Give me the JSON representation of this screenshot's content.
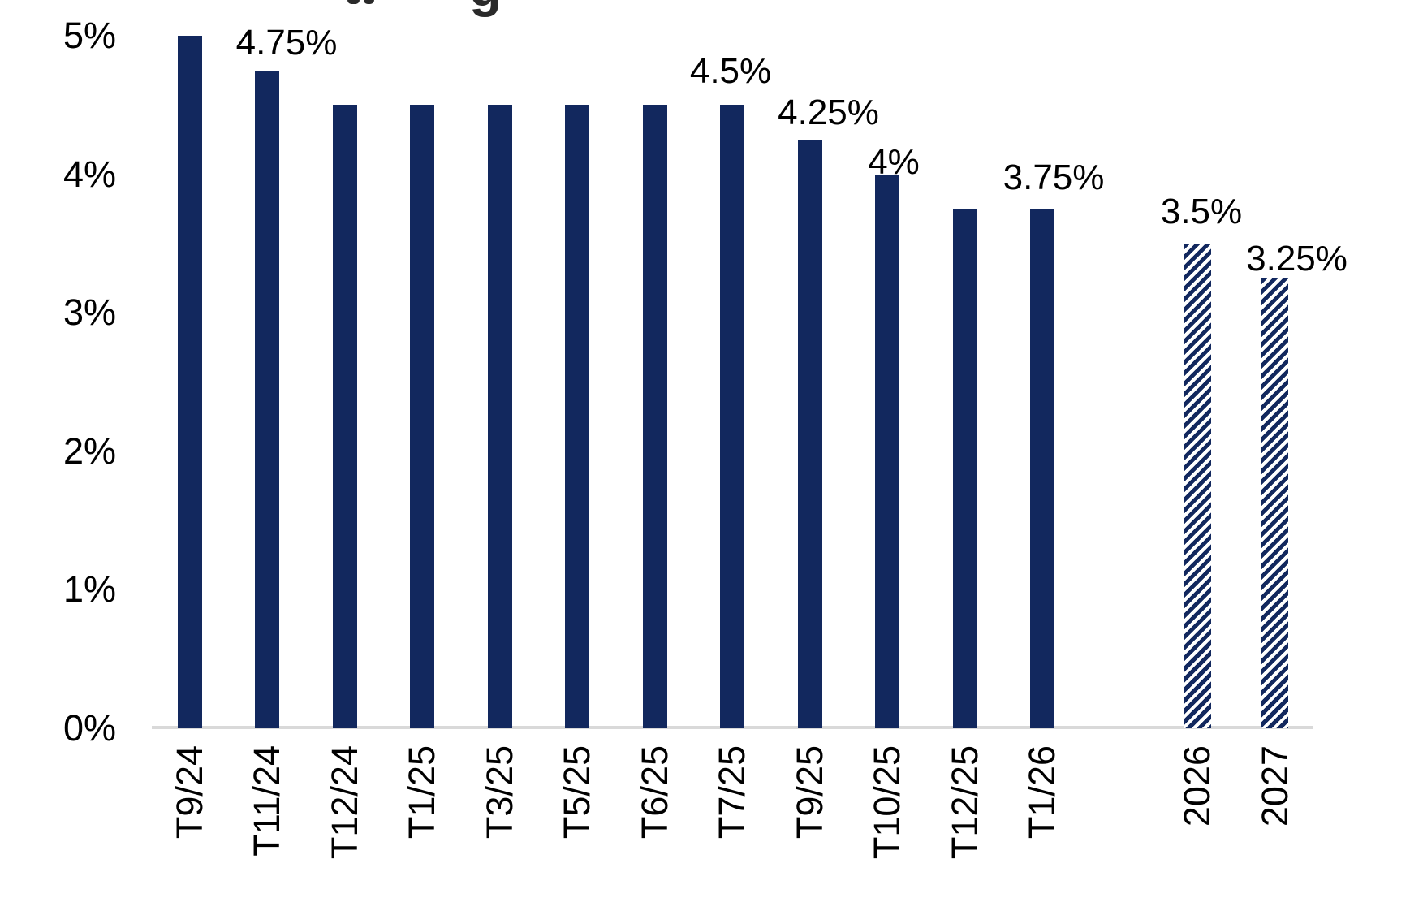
{
  "page": {
    "background": "#ffffff"
  },
  "cropped_title": {
    "visible_descender_letter": "g"
  },
  "chart_data": {
    "type": "bar",
    "title": "",
    "xlabel": "",
    "ylabel": "",
    "categories": [
      "T9/24",
      "T11/24",
      "T12/24",
      "T1/25",
      "T3/25",
      "T5/25",
      "T6/25",
      "T7/25",
      "T9/25",
      "T10/25",
      "T12/25",
      "T1/26",
      "2026",
      "2027"
    ],
    "values": [
      5,
      4.75,
      4.5,
      4.5,
      4.5,
      4.5,
      4.5,
      4.5,
      4.25,
      4,
      3.75,
      3.75,
      3.5,
      3.25
    ],
    "value_labels": [
      "",
      "4.75%",
      "",
      "",
      "",
      "",
      "",
      "4.5%",
      "4.25%",
      "4%",
      "",
      "3.75%",
      "3.5%",
      "3.25%"
    ],
    "hatched": [
      false,
      false,
      false,
      false,
      false,
      false,
      false,
      false,
      false,
      false,
      false,
      false,
      true,
      true
    ],
    "slot_index": [
      0,
      1,
      2,
      3,
      4,
      5,
      6,
      7,
      8,
      9,
      10,
      11,
      13,
      14
    ],
    "y_ticks": [
      "0%",
      "1%",
      "2%",
      "3%",
      "4%",
      "5%"
    ],
    "ylim": [
      0,
      5
    ],
    "grid": false,
    "legend": false,
    "colors": {
      "bar": "#12285e",
      "axis_line": "#d9d9d9",
      "label_text": "#000000"
    },
    "label_dx": [
      0,
      24,
      0,
      0,
      0,
      0,
      0,
      -2,
      23,
      8,
      0,
      14,
      5,
      27
    ],
    "label_gap": [
      0,
      11,
      0,
      0,
      0,
      0,
      0,
      18,
      10,
      -8,
      0,
      15,
      16,
      1
    ]
  }
}
